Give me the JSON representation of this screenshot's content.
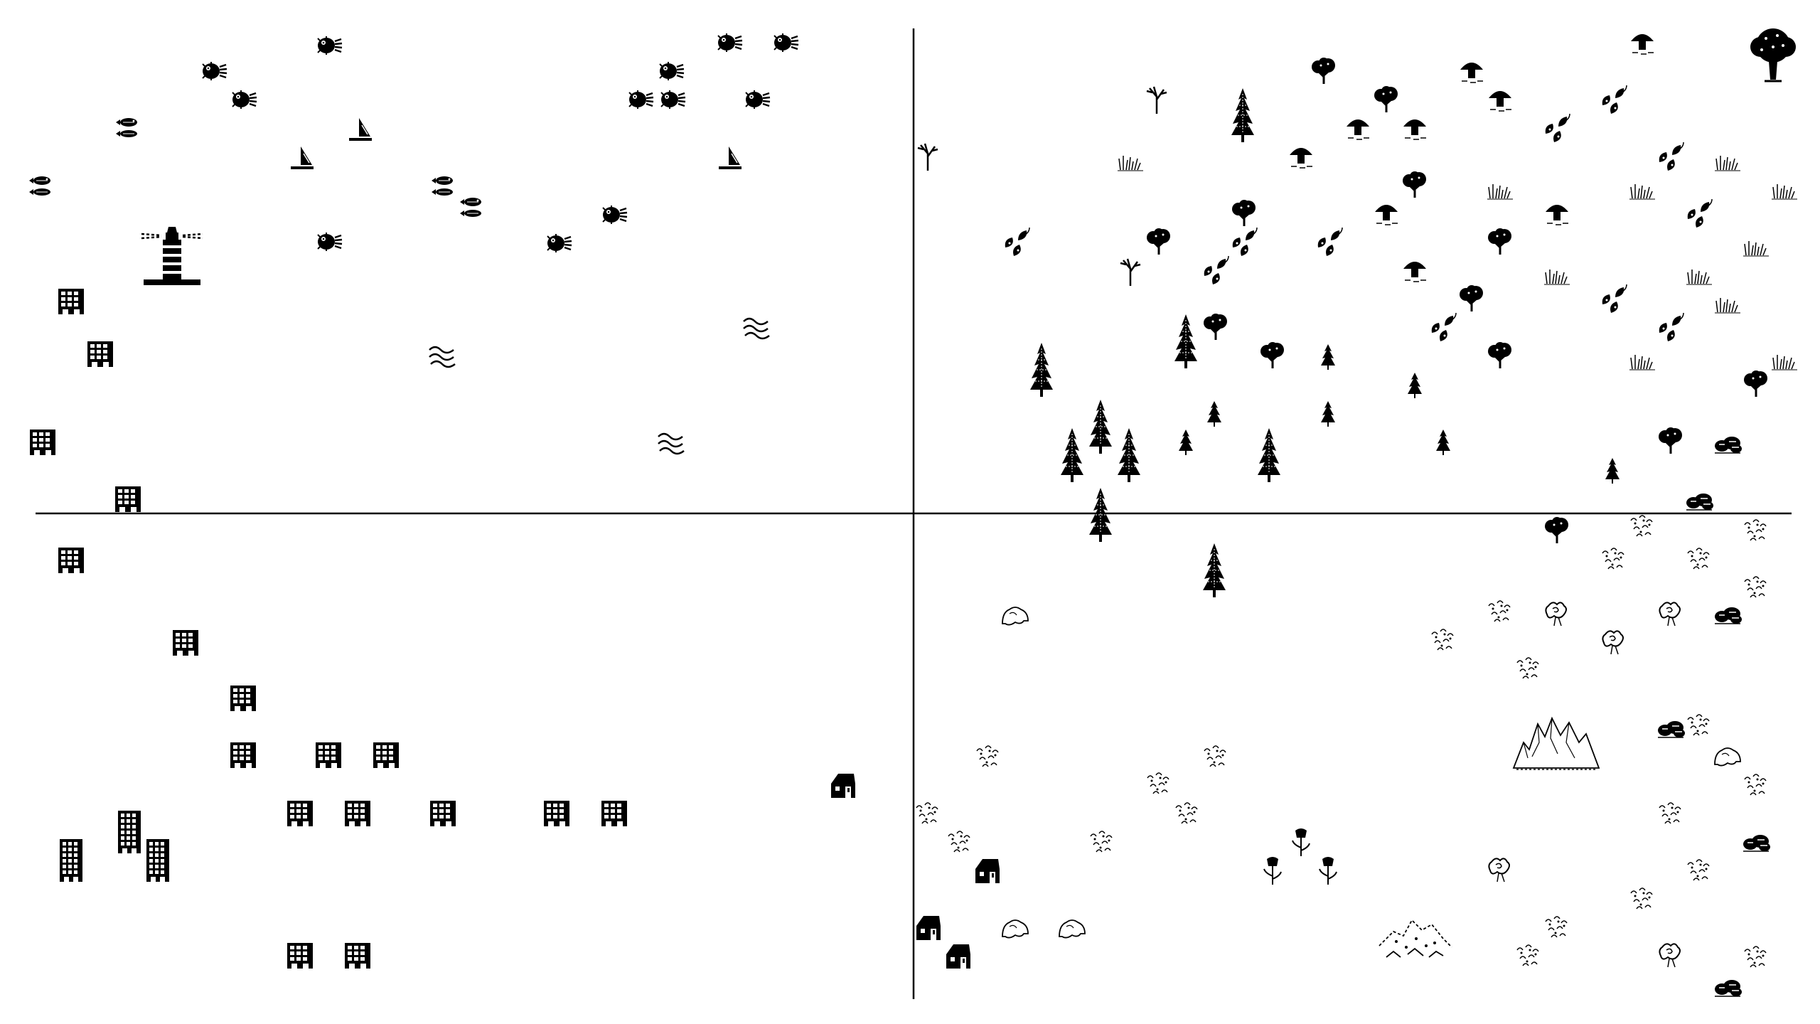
{
  "map": {
    "background": "#ffffff",
    "ink": "#000000",
    "quadrants": [
      "sea",
      "forest",
      "town",
      "wilderness"
    ]
  },
  "symbols": {
    "pufferfish": "pufferfish-icon",
    "sailboat": "sailboat-icon",
    "fish_school": "fish-school-icon",
    "lighthouse": "lighthouse-icon",
    "waves": "waves-icon",
    "office_building": "office-building-icon",
    "tall_building": "tall-building-icon",
    "house": "house-icon",
    "conifer": "conifer-icon",
    "small_conifer": "small-conifer-icon",
    "deciduous_tree": "deciduous-tree-icon",
    "mushroom": "mushroom-icon",
    "dead_tree": "dead-tree-icon",
    "big_tree": "big-tree-icon",
    "grass": "grass-icon",
    "leaves": "fallen-leaves-icon",
    "bush": "bush-icon",
    "cloud_swirl": "cloud-swirl-icon",
    "shrub": "shrub-icon",
    "rock": "rock-icon",
    "mountain": "mountain-icon",
    "flower": "flower-icon",
    "rubble": "rubble-icon"
  }
}
